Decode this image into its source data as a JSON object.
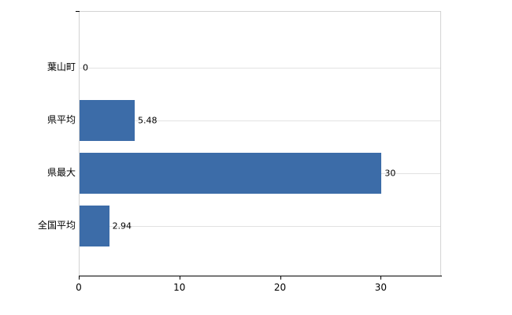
{
  "chart_data": {
    "type": "bar",
    "orientation": "horizontal",
    "title": "",
    "categories": [
      "葉山町",
      "県平均",
      "県最大",
      "全国平均"
    ],
    "values": [
      0,
      5.48,
      30,
      2.94
    ],
    "value_labels": [
      "0",
      "5.48",
      "30",
      "2.94"
    ],
    "x_tick_labels": [
      "0",
      "10",
      "20",
      "30"
    ],
    "x_tick_values": [
      0,
      10,
      20,
      30
    ],
    "xlim": [
      0,
      36
    ],
    "ylabel": "",
    "xlabel": "",
    "legend": "none",
    "grid": "category-gridlines",
    "colors": {
      "bar": "#3c6ca8",
      "gridline": "#e2e2e2",
      "plot_border": "#d3d3d3",
      "axis": "#000000",
      "text": "#000000",
      "background": "#ffffff"
    }
  }
}
